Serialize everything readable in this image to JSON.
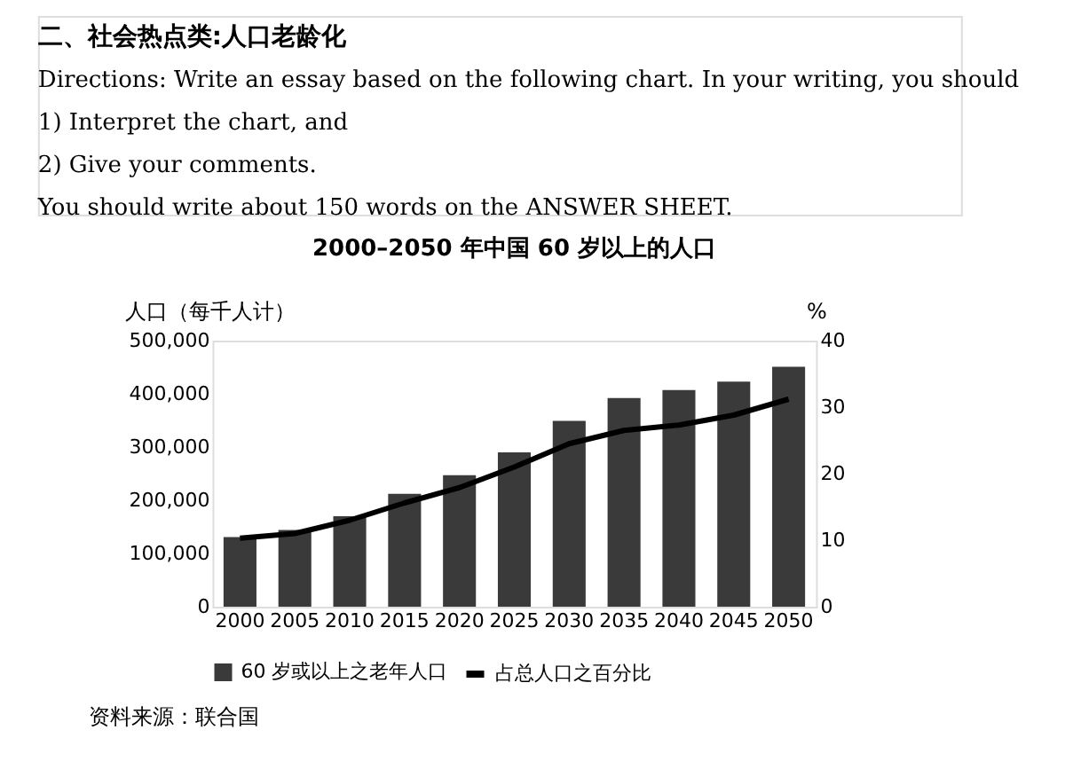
{
  "chart_data": {
    "type": "bar",
    "title": "2000–2050 年中国 60 岁以上的人口",
    "ylabel": "人口（每千人计）",
    "y2label": "%",
    "annotations": [
      "二、社会热点类:人口老龄化",
      "Directions: Write an essay based on the following chart. In your writing, you should",
      "1)  Interpret the chart, and",
      "2)  Give your comments.",
      "You should write about 150 words on the ANSWER SHEET.",
      "资料来源：联合国"
    ],
    "categories": [
      "2000",
      "2005",
      "2010",
      "2015",
      "2020",
      "2025",
      "2030",
      "2035",
      "2040",
      "2045",
      "2050"
    ],
    "series": [
      {
        "name": "60 岁或以上之老年人口",
        "color": "#3a3a3a",
        "values": [
          131000,
          144000,
          170000,
          212000,
          247000,
          290000,
          349000,
          392000,
          407000,
          423000,
          451000
        ]
      },
      {
        "name": "占总人口之百分比",
        "type": "line",
        "axis": "y2",
        "color": "#000000",
        "values": [
          10.3,
          11,
          13,
          15.6,
          17.9,
          21,
          24.5,
          26.5,
          27.3,
          28.8,
          31.2
        ]
      }
    ],
    "ylim": [
      0,
      500000
    ],
    "yticks": [
      0,
      {
        "value": 100000,
        "label": "100,000"
      },
      {
        "value": 200000,
        "label": "200,000"
      },
      {
        "value": 300000,
        "label": "300,000"
      },
      {
        "value": 400000,
        "label": "400,000"
      },
      {
        "value": 500000,
        "label": "500,000"
      }
    ],
    "y2lim": [
      0,
      40
    ],
    "y2ticks": [
      0,
      10,
      20,
      30,
      40
    ],
    "grid": false,
    "legend": "bottom"
  }
}
